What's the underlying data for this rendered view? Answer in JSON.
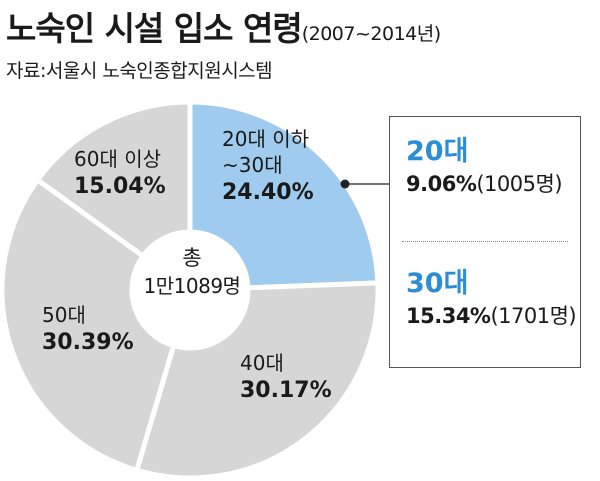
{
  "header": {
    "title": "노숙인 시설 입소 연령",
    "subtitle": "(2007~2014년)",
    "source": "자료:서울시 노숙인종합지원시스템"
  },
  "colors": {
    "highlight": "#9ecbee",
    "base": "#d6d6d6",
    "separator": "#ffffff",
    "accent": "#2b8dd6"
  },
  "chart_data": {
    "type": "pie",
    "style": "donut",
    "categories": [
      "20대 이하~30대",
      "40대",
      "50대",
      "60대 이상"
    ],
    "values": [
      24.4,
      30.17,
      30.39,
      15.04
    ],
    "labels": [
      {
        "name": "20대 이하",
        "name2": "~30대",
        "value": "24.40%"
      },
      {
        "name": "40대",
        "name2": "",
        "value": "30.17%"
      },
      {
        "name": "50대",
        "name2": "",
        "value": "30.39%"
      },
      {
        "name": "60대 이상",
        "name2": "",
        "value": "15.04%"
      }
    ],
    "center": {
      "line1": "총",
      "line2": "1만1089명"
    },
    "callout": [
      {
        "name": "20대",
        "pct": "9.06%",
        "count": "(1005명)"
      },
      {
        "name": "30대",
        "pct": "15.34%",
        "count": "(1701명)"
      }
    ]
  }
}
